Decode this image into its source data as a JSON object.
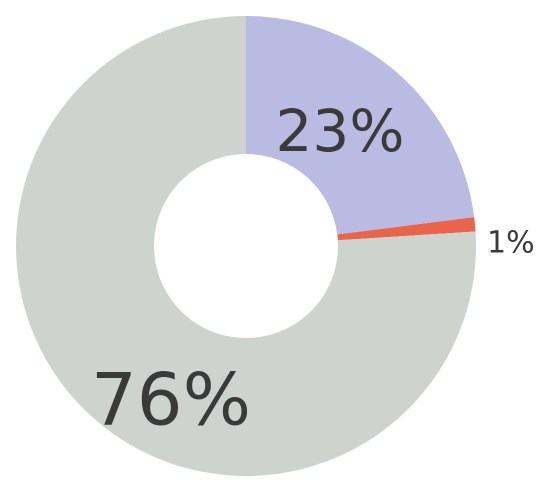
{
  "chart_data": {
    "type": "pie",
    "donut": true,
    "title": "",
    "legend": "none",
    "slices": [
      {
        "label": "23%",
        "value": 23,
        "color": "#b9bbe2"
      },
      {
        "label": "1%",
        "value": 1,
        "color": "#e8644a"
      },
      {
        "label": "76%",
        "value": 76,
        "color": "#cfd3cf"
      }
    ]
  }
}
